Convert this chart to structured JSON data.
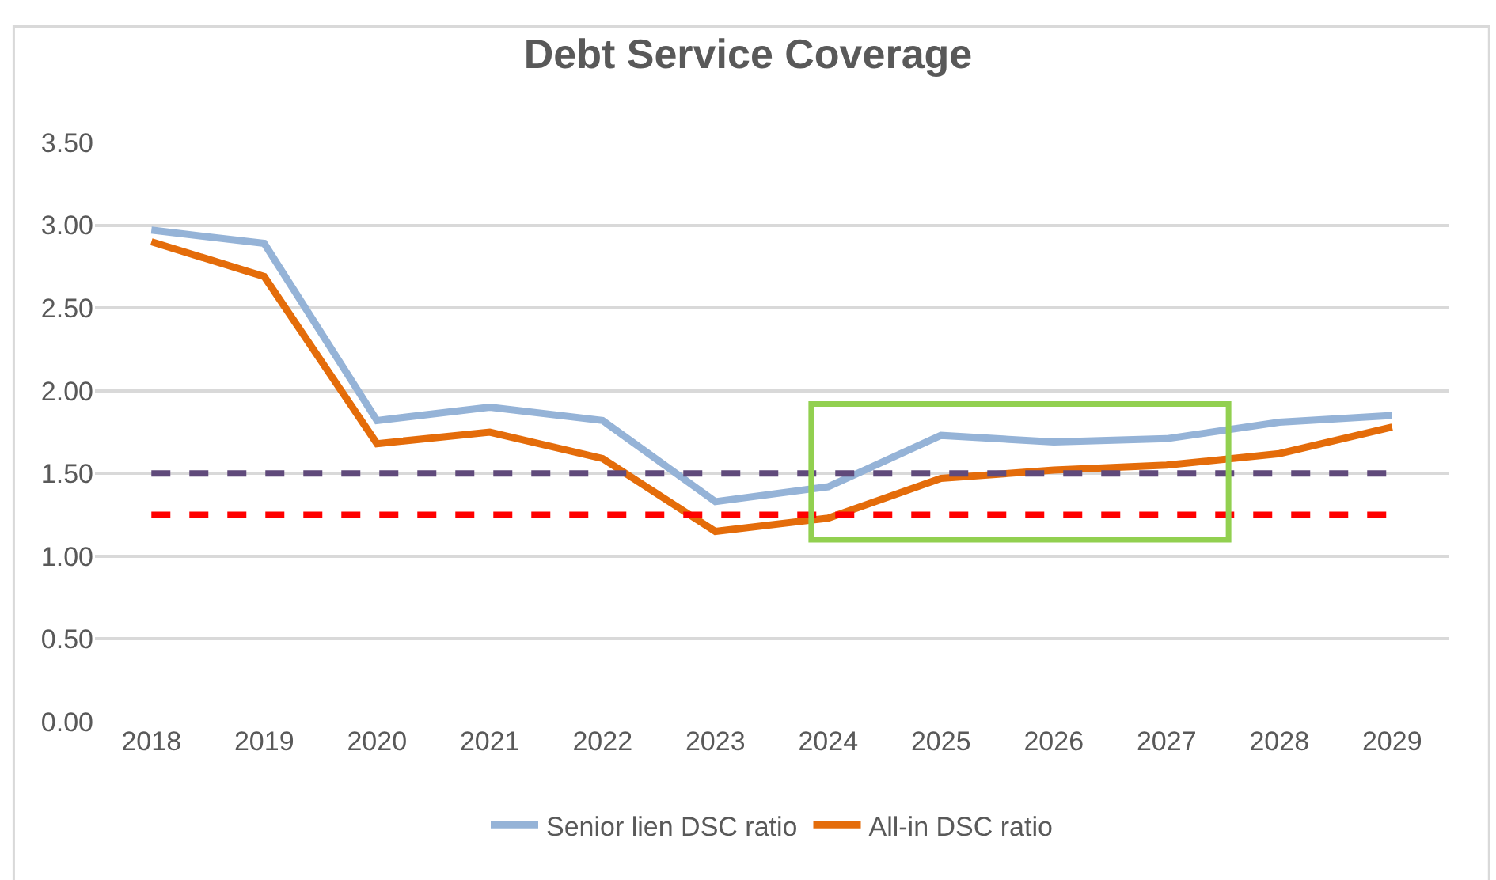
{
  "chart_data": {
    "type": "line",
    "title": "Debt Service Coverage",
    "categories": [
      "2018",
      "2019",
      "2020",
      "2021",
      "2022",
      "2023",
      "2024",
      "2025",
      "2026",
      "2027",
      "2028",
      "2029"
    ],
    "series": [
      {
        "name": "Senior lien DSC ratio",
        "color": "#95b3d7",
        "values": [
          2.97,
          2.89,
          1.82,
          1.9,
          1.82,
          1.33,
          1.42,
          1.73,
          1.69,
          1.71,
          1.81,
          1.85
        ]
      },
      {
        "name": "All-in DSC ratio",
        "color": "#e46c0a",
        "values": [
          2.9,
          2.69,
          1.68,
          1.75,
          1.59,
          1.15,
          1.23,
          1.47,
          1.52,
          1.55,
          1.62,
          1.78
        ]
      }
    ],
    "ref_lines": [
      {
        "axis": "y",
        "value": 1.5,
        "color": "#604a7b",
        "line_style": "dashed"
      },
      {
        "axis": "y",
        "value": 1.25,
        "color": "#ff0000",
        "line_style": "dashed"
      }
    ],
    "ylim": [
      0,
      3.5
    ],
    "yticks": [
      {
        "value": 0,
        "label": "0.00"
      },
      {
        "value": 0.5,
        "label": "0.50"
      },
      {
        "value": 1,
        "label": "1.00"
      },
      {
        "value": 1.5,
        "label": "1.50"
      },
      {
        "value": 2,
        "label": "2.00"
      },
      {
        "value": 2.5,
        "label": "2.50"
      },
      {
        "value": 3,
        "label": "3.00"
      },
      {
        "value": 3.5,
        "label": "3.50"
      }
    ],
    "grid": "y",
    "legend": "bottom",
    "marker": "none",
    "line_style": "solid"
  }
}
